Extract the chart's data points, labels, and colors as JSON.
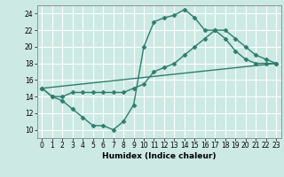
{
  "xlabel": "Humidex (Indice chaleur)",
  "background_color": "#cce9e4",
  "grid_color": "#ffffff",
  "line_color": "#2e7d6e",
  "xlim": [
    -0.5,
    23.5
  ],
  "ylim": [
    9,
    25
  ],
  "xticks": [
    0,
    1,
    2,
    3,
    4,
    5,
    6,
    7,
    8,
    9,
    10,
    11,
    12,
    13,
    14,
    15,
    16,
    17,
    18,
    19,
    20,
    21,
    22,
    23
  ],
  "yticks": [
    10,
    12,
    14,
    16,
    18,
    20,
    22,
    24
  ],
  "lines": [
    {
      "x": [
        0,
        1,
        2,
        3,
        4,
        5,
        6,
        7,
        8,
        9,
        10,
        11,
        12,
        13,
        14,
        15,
        16,
        17,
        18,
        19,
        20,
        21,
        22,
        23
      ],
      "y": [
        15,
        14,
        13.5,
        12.5,
        11.5,
        10.5,
        10.5,
        10,
        11,
        13,
        20,
        23,
        23.5,
        23.8,
        24.5,
        23.5,
        22,
        22,
        21,
        19.5,
        18.5,
        18,
        18,
        18
      ],
      "has_markers": true
    },
    {
      "x": [
        0,
        1,
        2,
        3,
        4,
        5,
        6,
        7,
        8,
        9,
        10,
        11,
        12,
        13,
        14,
        15,
        16,
        17,
        18,
        19,
        20,
        21,
        22,
        23
      ],
      "y": [
        15,
        14,
        14,
        14.5,
        14.5,
        14.5,
        14.5,
        14.5,
        14.5,
        15,
        15.5,
        17,
        17.5,
        18,
        19,
        20,
        21,
        22,
        22,
        21,
        20,
        19,
        18.5,
        18
      ],
      "has_markers": true
    },
    {
      "x": [
        0,
        23
      ],
      "y": [
        15,
        18
      ],
      "has_markers": false
    }
  ],
  "marker": "D",
  "marker_size": 2.5,
  "line_width": 1.0
}
